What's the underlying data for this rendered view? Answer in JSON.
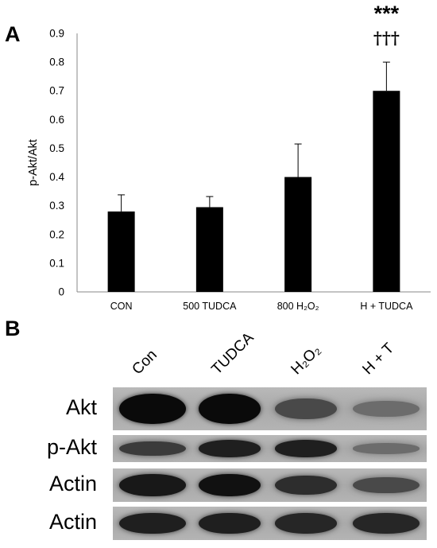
{
  "panels": {
    "a_label": "A",
    "b_label": "B"
  },
  "chart_data": {
    "type": "bar",
    "categories": [
      "CON",
      "500 TUDCA",
      "800 H₂O₂",
      "H + TUDCA"
    ],
    "values": [
      0.28,
      0.295,
      0.4,
      0.7
    ],
    "errors": [
      0.058,
      0.037,
      0.115,
      0.1
    ],
    "ylabel": "p-Akt/Akt",
    "ylim": [
      0,
      0.9
    ],
    "yticks": [
      0,
      0.1,
      0.2,
      0.3,
      0.4,
      0.5,
      0.6,
      0.7,
      0.8,
      0.9
    ],
    "ytick_labels": [
      "0",
      "0.1",
      "0.2",
      "0.3",
      "0.4",
      "0.5",
      "0.6",
      "0.7",
      "0.8",
      "0.9"
    ],
    "bar_color": "#000000",
    "grid": false,
    "annotations": [
      {
        "category": "H + TUDCA",
        "text": "***"
      },
      {
        "category": "H + TUDCA",
        "text": "†††"
      }
    ]
  },
  "blot": {
    "lanes": [
      "Con",
      "TUDCA",
      "H₂O₂",
      "H + T"
    ],
    "rows": [
      {
        "name": "Akt",
        "intensity": [
          1.0,
          1.0,
          0.55,
          0.3
        ]
      },
      {
        "name": "p-Akt",
        "intensity": [
          0.65,
          0.85,
          0.85,
          0.3
        ]
      },
      {
        "name": "Actin",
        "intensity": [
          0.9,
          0.95,
          0.75,
          0.55
        ]
      },
      {
        "name": "Actin",
        "intensity": [
          0.85,
          0.85,
          0.8,
          0.8
        ]
      }
    ]
  }
}
